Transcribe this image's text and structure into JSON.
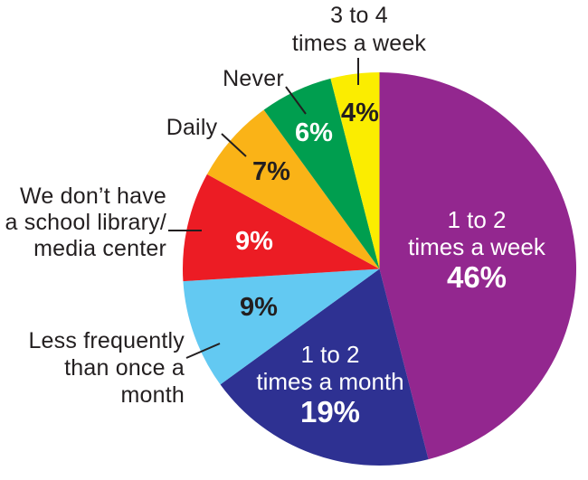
{
  "chart_data": {
    "type": "pie",
    "title": "",
    "unit": "%",
    "total": 100,
    "direction": "clockwise",
    "start_angle_deg": 0,
    "background": "#FFFFFF",
    "leader_line_color": "#231F20",
    "label_text_color": "#231F20",
    "slices": [
      {
        "id": "1-to-2-times-a-week",
        "label": "1 to 2 times a week",
        "value": 46,
        "pct": "46%",
        "color": "#93278F",
        "label_placement": "inside",
        "label_lines": [
          "1 to 2",
          "times a week"
        ],
        "text_color": "#FFFFFF"
      },
      {
        "id": "1-to-2-times-a-month",
        "label": "1 to 2 times a month",
        "value": 19,
        "pct": "19%",
        "color": "#2E3192",
        "label_placement": "inside",
        "label_lines": [
          "1 to 2",
          "times a month"
        ],
        "text_color": "#FFFFFF"
      },
      {
        "id": "less-frequently-than-once-a-month",
        "label": "Less frequently than once a month",
        "value": 9,
        "pct": "9%",
        "color": "#63C9F2",
        "label_placement": "outside",
        "label_lines": [
          "Less frequently",
          "than once a",
          "month"
        ],
        "text_color": "#231F20"
      },
      {
        "id": "no-school-library-media-center",
        "label": "We don’t have a school library/media center",
        "value": 9,
        "pct": "9%",
        "color": "#EC1C24",
        "label_placement": "outside",
        "label_lines": [
          "We don’t have",
          "a school library/",
          "media center"
        ],
        "text_color": "#FFFFFF"
      },
      {
        "id": "daily",
        "label": "Daily",
        "value": 7,
        "pct": "7%",
        "color": "#FAB317",
        "label_placement": "outside",
        "label_lines": [
          "Daily"
        ],
        "text_color": "#231F20"
      },
      {
        "id": "never",
        "label": "Never",
        "value": 6,
        "pct": "6%",
        "color": "#009E4F",
        "label_placement": "outside",
        "label_lines": [
          "Never"
        ],
        "text_color": "#FFFFFF"
      },
      {
        "id": "3-to-4-times-a-week",
        "label": "3 to 4 times a week",
        "value": 4,
        "pct": "4%",
        "color": "#FBED00",
        "label_placement": "outside",
        "label_lines": [
          "3 to 4",
          "times a week"
        ],
        "text_color": "#231F20"
      }
    ]
  }
}
